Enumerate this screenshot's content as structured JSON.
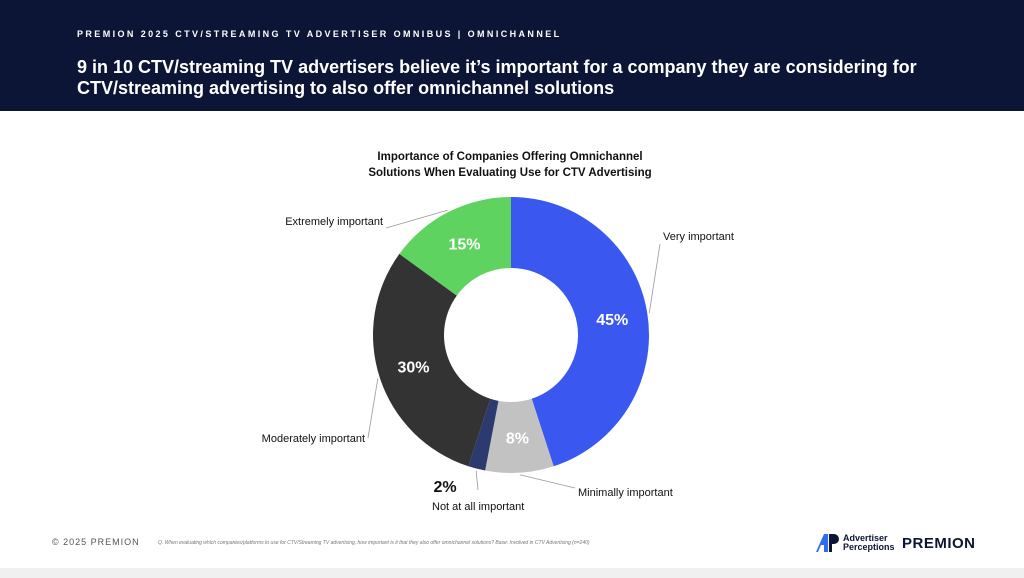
{
  "header": {
    "eyebrow": "PREMION 2025 CTV/STREAMING TV ADVERTISER OMNIBUS | OMNICHANNEL",
    "headline": "9 in 10 CTV/streaming TV advertisers believe it’s important for a company they are considering for CTV/streaming advertising to also offer omnichannel solutions"
  },
  "chart_data": {
    "type": "pie",
    "donut": true,
    "title": "Importance of Companies Offering Omnichannel Solutions When Evaluating Use for CTV Advertising",
    "unit": "%",
    "slices": [
      {
        "label": "Very important",
        "value": 45,
        "display": "45%",
        "color": "#3a57f0",
        "label_position": "right-top"
      },
      {
        "label": "Minimally important",
        "value": 8,
        "display": "8%",
        "color": "#c2c2c2",
        "label_position": "bottom-right"
      },
      {
        "label": "Not at all important",
        "value": 2,
        "display": "2%",
        "color": "#2c3a70",
        "label_position": "bottom"
      },
      {
        "label": "Moderately important",
        "value": 30,
        "display": "30%",
        "color": "#333333",
        "label_position": "left-bottom"
      },
      {
        "label": "Extremely important",
        "value": 15,
        "display": "15%",
        "color": "#5fd35f",
        "label_position": "left-top"
      }
    ]
  },
  "footer": {
    "copyright": "© 2025 PREMION",
    "footnote": "Q. When evaluating which companies/platforms to use for CTV/Streaming TV advertising, how important is it that they also offer omnichannel solutions? Base: Involved in CTV Advertising (n=240)",
    "ap_logo_line1": "Advertiser",
    "ap_logo_line2": "Perceptions",
    "premion_logo": "PREMION"
  }
}
